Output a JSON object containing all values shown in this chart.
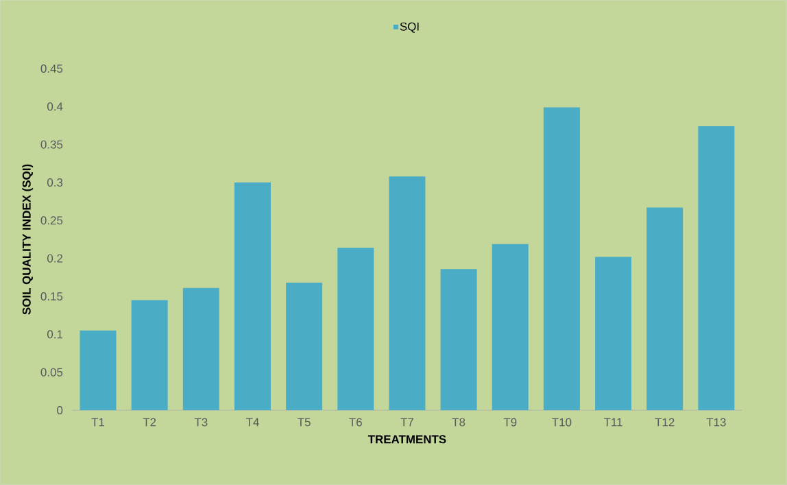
{
  "chart_data": {
    "type": "bar",
    "xlabel": "TREATMENTS",
    "ylabel": "SOIL QUALITY INDEX (SQI)",
    "categories": [
      "T1",
      "T2",
      "T3",
      "T4",
      "T5",
      "T6",
      "T7",
      "T8",
      "T9",
      "T10",
      "T11",
      "T12",
      "T13"
    ],
    "series": [
      {
        "name": "SQI",
        "color": "#4bacc6",
        "values": [
          0.105,
          0.145,
          0.161,
          0.3,
          0.168,
          0.214,
          0.308,
          0.186,
          0.219,
          0.399,
          0.202,
          0.267,
          0.374
        ]
      }
    ],
    "ylim": [
      0,
      0.45
    ],
    "yticks": [
      0,
      0.05,
      0.1,
      0.15,
      0.2,
      0.25,
      0.3,
      0.35,
      0.4,
      0.45
    ],
    "grid": false,
    "legend": "top"
  }
}
